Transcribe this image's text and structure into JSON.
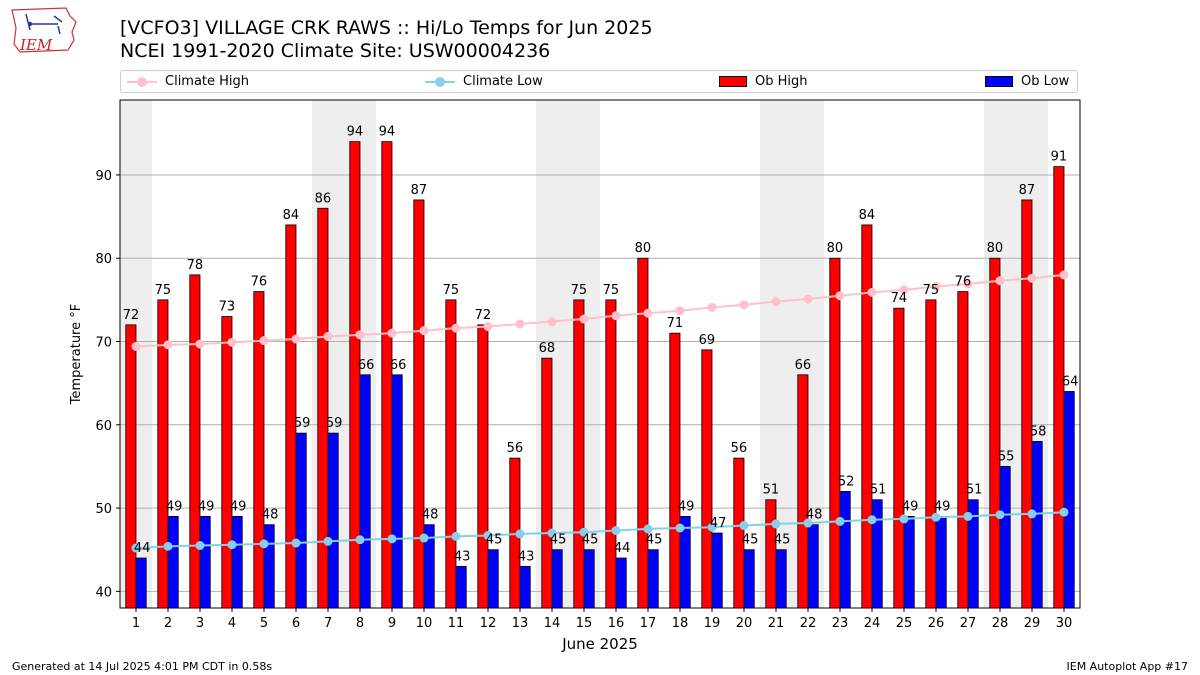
{
  "header": {
    "title_line1": "[VCFO3] VILLAGE CRK RAWS :: Hi/Lo Temps for Jun 2025",
    "title_line2": "NCEI 1991-2020 Climate Site: USW00004236",
    "logo_text": "IEM"
  },
  "legend": {
    "climate_high": "Climate High",
    "climate_low": "Climate Low",
    "ob_high": "Ob High",
    "ob_low": "Ob Low"
  },
  "footer": {
    "left": "Generated at 14 Jul 2025 4:01 PM CDT in 0.58s",
    "right": "IEM Autoplot App #17"
  },
  "chart_data": {
    "type": "bar",
    "xlabel": "June 2025",
    "ylabel": "Temperature °F",
    "ylim": [
      38,
      99
    ],
    "yticks": [
      40,
      50,
      60,
      70,
      80,
      90
    ],
    "grid": "horizontal",
    "legend_position": "top",
    "categories": [
      "1",
      "2",
      "3",
      "4",
      "5",
      "6",
      "7",
      "8",
      "9",
      "10",
      "11",
      "12",
      "13",
      "14",
      "15",
      "16",
      "17",
      "18",
      "19",
      "20",
      "21",
      "22",
      "23",
      "24",
      "25",
      "26",
      "27",
      "28",
      "29",
      "30"
    ],
    "weekend_shading_days": [
      1,
      7,
      8,
      14,
      15,
      21,
      22,
      28,
      29
    ],
    "series": [
      {
        "name": "Ob High",
        "type": "bar",
        "color": "#ff0000",
        "values": [
          72,
          75,
          78,
          73,
          76,
          84,
          86,
          94,
          94,
          87,
          75,
          72,
          56,
          68,
          75,
          75,
          80,
          71,
          69,
          56,
          51,
          66,
          80,
          84,
          74,
          75,
          76,
          80,
          87,
          91
        ]
      },
      {
        "name": "Ob Low",
        "type": "bar",
        "color": "#0000ff",
        "values": [
          44,
          49,
          49,
          49,
          48,
          59,
          59,
          66,
          66,
          48,
          43,
          45,
          43,
          45,
          45,
          44,
          45,
          49,
          47,
          45,
          45,
          48,
          52,
          51,
          49,
          49,
          51,
          55,
          58,
          64
        ]
      },
      {
        "name": "Climate High",
        "type": "line",
        "color": "#ffc0cb",
        "values": [
          69.4,
          69.6,
          69.7,
          69.9,
          70.1,
          70.3,
          70.6,
          70.8,
          71.0,
          71.3,
          71.6,
          71.8,
          72.1,
          72.4,
          72.7,
          73.1,
          73.4,
          73.7,
          74.1,
          74.4,
          74.8,
          75.1,
          75.5,
          75.9,
          76.2,
          76.6,
          76.9,
          77.3,
          77.6,
          78.0
        ]
      },
      {
        "name": "Climate Low",
        "type": "line",
        "color": "#87ceeb",
        "values": [
          45.2,
          45.4,
          45.5,
          45.6,
          45.7,
          45.8,
          46.0,
          46.2,
          46.3,
          46.4,
          46.6,
          46.7,
          46.9,
          47.0,
          47.1,
          47.3,
          47.5,
          47.6,
          47.7,
          47.9,
          48.1,
          48.2,
          48.4,
          48.6,
          48.7,
          48.9,
          49.0,
          49.2,
          49.3,
          49.5
        ]
      }
    ]
  }
}
